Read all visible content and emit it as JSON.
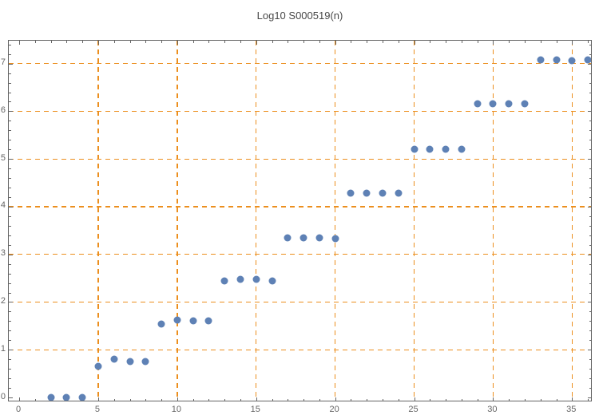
{
  "title": "Log10 S000519(n)",
  "colors": {
    "point": "#5E81B5",
    "grid": "#EC8F1E",
    "frame": "#646464",
    "tick_label": "#656565",
    "title_text": "#484848",
    "background": "#FFFFFF"
  },
  "chart_data": {
    "type": "scatter",
    "title": "Log10 S000519(n)",
    "xlabel": "",
    "ylabel": "",
    "legend": "none",
    "grid": "dashed-orange-at-major-ticks",
    "frame": "all-sides-with-inward-ticks",
    "xlim": [
      -0.66,
      36.3
    ],
    "ylim": [
      -0.1,
      7.48
    ],
    "x_major_ticks": [
      0,
      5,
      10,
      15,
      20,
      25,
      30,
      35
    ],
    "y_major_ticks": [
      0,
      1,
      2,
      3,
      4,
      5,
      6,
      7
    ],
    "x_minor_step": 1,
    "y_minor_step": 0.2,
    "grid_x": [
      5,
      10,
      15,
      20,
      25,
      30,
      35
    ],
    "grid_y": [
      1,
      2,
      3,
      4,
      5,
      6,
      7
    ],
    "points": [
      [
        2,
        0
      ],
      [
        3,
        0
      ],
      [
        4,
        0
      ],
      [
        5,
        0.66
      ],
      [
        6,
        0.81
      ],
      [
        7,
        0.76
      ],
      [
        8,
        0.76
      ],
      [
        9,
        1.54
      ],
      [
        10,
        1.63
      ],
      [
        11,
        1.61
      ],
      [
        12,
        1.61
      ],
      [
        13,
        2.44
      ],
      [
        14,
        2.48
      ],
      [
        15,
        2.48
      ],
      [
        16,
        2.44
      ],
      [
        17,
        3.35
      ],
      [
        18,
        3.35
      ],
      [
        19,
        3.35
      ],
      [
        20,
        3.33
      ],
      [
        21,
        4.28
      ],
      [
        22,
        4.28
      ],
      [
        23,
        4.28
      ],
      [
        24,
        4.29
      ],
      [
        25,
        5.21
      ],
      [
        26,
        5.21
      ],
      [
        27,
        5.21
      ],
      [
        28,
        5.21
      ],
      [
        29,
        6.15
      ],
      [
        30,
        6.15
      ],
      [
        31,
        6.15
      ],
      [
        32,
        6.15
      ],
      [
        33,
        7.08
      ],
      [
        34,
        7.08
      ],
      [
        35,
        7.07
      ],
      [
        36,
        7.08
      ]
    ]
  }
}
